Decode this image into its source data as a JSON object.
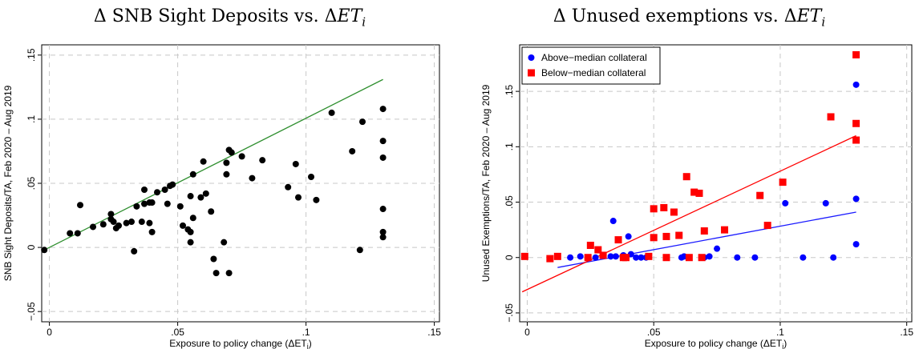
{
  "chart_data": [
    {
      "type": "scatter",
      "title_prefix": "Δ SNB Sight Deposits vs. Δ",
      "title_var": "ET",
      "title_sub": "i",
      "xlabel": "Exposure to policy change (ΔET",
      "xlabel_sub": "i",
      "xlabel_suffix": ")",
      "ylabel": "SNB Sight Deposits/TA, Feb 2020 – Aug 2019",
      "xlim": [
        -0.003,
        0.152
      ],
      "ylim": [
        -0.058,
        0.158
      ],
      "xticks": [
        0,
        0.05,
        0.1,
        0.15
      ],
      "xtick_labels": [
        "0",
        ".05",
        ".1",
        ".15"
      ],
      "yticks": [
        -0.05,
        0,
        0.05,
        0.1,
        0.15
      ],
      "ytick_labels": [
        "−.05",
        "0",
        ".05",
        ".1",
        ".15"
      ],
      "grid": true,
      "fit_line": {
        "x": [
          -0.002,
          0.13
        ],
        "y": [
          -0.002,
          0.131
        ],
        "color": "#2f8f2f"
      },
      "series": [
        {
          "color": "#000000",
          "marker": "circle",
          "points": [
            [
              -0.002,
              -0.002
            ],
            [
              0.008,
              0.011
            ],
            [
              0.011,
              0.011
            ],
            [
              0.012,
              0.033
            ],
            [
              0.017,
              0.016
            ],
            [
              0.021,
              0.018
            ],
            [
              0.024,
              0.022
            ],
            [
              0.024,
              0.026
            ],
            [
              0.025,
              0.02
            ],
            [
              0.026,
              0.015
            ],
            [
              0.027,
              0.017
            ],
            [
              0.03,
              0.019
            ],
            [
              0.032,
              0.02
            ],
            [
              0.033,
              -0.003
            ],
            [
              0.034,
              0.032
            ],
            [
              0.036,
              0.02
            ],
            [
              0.037,
              0.034
            ],
            [
              0.037,
              0.045
            ],
            [
              0.039,
              0.035
            ],
            [
              0.039,
              0.019
            ],
            [
              0.04,
              0.035
            ],
            [
              0.04,
              0.012
            ],
            [
              0.042,
              0.043
            ],
            [
              0.045,
              0.045
            ],
            [
              0.046,
              0.034
            ],
            [
              0.047,
              0.048
            ],
            [
              0.048,
              0.049
            ],
            [
              0.051,
              0.032
            ],
            [
              0.052,
              0.017
            ],
            [
              0.054,
              0.014
            ],
            [
              0.055,
              0.04
            ],
            [
              0.055,
              0.012
            ],
            [
              0.055,
              0.004
            ],
            [
              0.056,
              0.057
            ],
            [
              0.056,
              0.023
            ],
            [
              0.059,
              0.039
            ],
            [
              0.06,
              0.067
            ],
            [
              0.061,
              0.042
            ],
            [
              0.063,
              0.028
            ],
            [
              0.064,
              -0.009
            ],
            [
              0.065,
              -0.02
            ],
            [
              0.068,
              0.004
            ],
            [
              0.069,
              0.057
            ],
            [
              0.069,
              0.066
            ],
            [
              0.07,
              0.076
            ],
            [
              0.07,
              -0.02
            ],
            [
              0.071,
              0.074
            ],
            [
              0.075,
              0.071
            ],
            [
              0.079,
              0.054
            ],
            [
              0.083,
              0.068
            ],
            [
              0.093,
              0.047
            ],
            [
              0.096,
              0.065
            ],
            [
              0.097,
              0.039
            ],
            [
              0.102,
              0.055
            ],
            [
              0.104,
              0.037
            ],
            [
              0.11,
              0.105
            ],
            [
              0.118,
              0.075
            ],
            [
              0.121,
              -0.002
            ],
            [
              0.122,
              0.098
            ],
            [
              0.13,
              0.108
            ],
            [
              0.13,
              0.083
            ],
            [
              0.13,
              0.07
            ],
            [
              0.13,
              0.03
            ],
            [
              0.13,
              0.012
            ],
            [
              0.13,
              0.008
            ]
          ]
        }
      ]
    },
    {
      "type": "scatter",
      "title_prefix": "Δ Unused exemptions vs. Δ",
      "title_var": "ET",
      "title_sub": "i",
      "xlabel": "Exposure to policy change (ΔET",
      "xlabel_sub": "i",
      "xlabel_suffix": ")",
      "ylabel": "Unused Exemptions/TA, Feb 2020 – Aug 2019",
      "xlim": [
        -0.003,
        0.152
      ],
      "ylim": [
        -0.058,
        0.192
      ],
      "xticks": [
        0,
        0.05,
        0.1,
        0.15
      ],
      "xtick_labels": [
        "0",
        ".05",
        ".1",
        ".15"
      ],
      "yticks": [
        -0.05,
        0,
        0.05,
        0.1,
        0.15
      ],
      "ytick_labels": [
        "−.05",
        "0",
        ".05",
        ".1",
        ".15"
      ],
      "grid": true,
      "legend_position": "top-left",
      "fit_lines": [
        {
          "x": [
            0.012,
            0.13
          ],
          "y": [
            -0.009,
            0.041
          ],
          "color": "#1a1aff"
        },
        {
          "x": [
            -0.002,
            0.13
          ],
          "y": [
            -0.031,
            0.11
          ],
          "color": "#ff0000"
        }
      ],
      "series": [
        {
          "name": "Above−median collateral",
          "color": "#0000ff",
          "marker": "circle",
          "points": [
            [
              0.017,
              0.0
            ],
            [
              0.021,
              0.001
            ],
            [
              0.024,
              0.0
            ],
            [
              0.027,
              0.0
            ],
            [
              0.033,
              0.001
            ],
            [
              0.034,
              0.033
            ],
            [
              0.035,
              0.001
            ],
            [
              0.038,
              0.002
            ],
            [
              0.039,
              0.0
            ],
            [
              0.04,
              0.019
            ],
            [
              0.041,
              0.003
            ],
            [
              0.043,
              0.0
            ],
            [
              0.045,
              0.0
            ],
            [
              0.047,
              0.0
            ],
            [
              0.061,
              0.0
            ],
            [
              0.062,
              0.001
            ],
            [
              0.07,
              0.0
            ],
            [
              0.072,
              0.001
            ],
            [
              0.075,
              0.008
            ],
            [
              0.083,
              0.0
            ],
            [
              0.09,
              0.0
            ],
            [
              0.102,
              0.049
            ],
            [
              0.109,
              0.0
            ],
            [
              0.118,
              0.049
            ],
            [
              0.121,
              0.0
            ],
            [
              0.13,
              0.156
            ],
            [
              0.13,
              0.053
            ],
            [
              0.13,
              0.012
            ]
          ]
        },
        {
          "name": "Below−median collateral",
          "color": "#ff0000",
          "marker": "square",
          "points": [
            [
              -0.001,
              0.001
            ],
            [
              0.009,
              -0.001
            ],
            [
              0.012,
              0.001
            ],
            [
              0.024,
              0.0
            ],
            [
              0.025,
              0.011
            ],
            [
              0.028,
              0.007
            ],
            [
              0.03,
              0.002
            ],
            [
              0.036,
              0.016
            ],
            [
              0.038,
              0.0
            ],
            [
              0.039,
              0.0
            ],
            [
              0.048,
              0.001
            ],
            [
              0.05,
              0.018
            ],
            [
              0.05,
              0.044
            ],
            [
              0.054,
              0.045
            ],
            [
              0.055,
              0.019
            ],
            [
              0.055,
              0.0
            ],
            [
              0.058,
              0.041
            ],
            [
              0.06,
              0.02
            ],
            [
              0.063,
              0.073
            ],
            [
              0.064,
              0.0
            ],
            [
              0.066,
              0.059
            ],
            [
              0.068,
              0.058
            ],
            [
              0.069,
              0.0
            ],
            [
              0.07,
              0.024
            ],
            [
              0.078,
              0.025
            ],
            [
              0.092,
              0.056
            ],
            [
              0.095,
              0.029
            ],
            [
              0.101,
              0.068
            ],
            [
              0.12,
              0.127
            ],
            [
              0.13,
              0.183
            ],
            [
              0.13,
              0.121
            ],
            [
              0.13,
              0.106
            ]
          ]
        }
      ]
    }
  ]
}
